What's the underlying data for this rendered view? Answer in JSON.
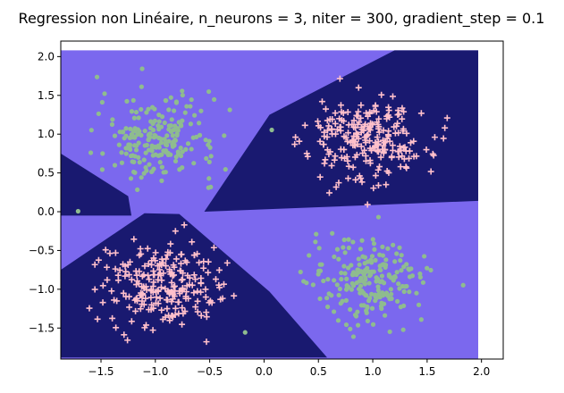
{
  "chart_data": {
    "type": "scatter",
    "title": "Regression non Linéaire, n_neurons = 3, niter = 300, gradient_step = 0.1",
    "xlabel": "",
    "ylabel": "",
    "xlim": [
      -1.87,
      2.2
    ],
    "ylim": [
      -1.9,
      2.2
    ],
    "grid": false,
    "legend": "none",
    "x_ticks": [
      -1.5,
      -1.0,
      -0.5,
      0.0,
      0.5,
      1.0,
      1.5,
      2.0
    ],
    "y_ticks": [
      2.0,
      1.5,
      1.0,
      0.5,
      0.0,
      -0.5,
      -1.0,
      -1.5
    ],
    "x_tick_labels": [
      "−1.5",
      "−1.0",
      "−0.5",
      "0.0",
      "0.5",
      "1.0",
      "1.5",
      "2.0"
    ],
    "y_tick_labels": [
      "2.0",
      "1.5",
      "1.0",
      "0.5",
      "0.0",
      "−0.5",
      "−1.0",
      "−1.5"
    ],
    "background": {
      "description": "decision regions of the classifier on grid x in [-1.87, 1.97], y in [-1.9, 2.08]",
      "colors": {
        "region_a": "#7b68ee",
        "region_b": "#191970"
      }
    },
    "clusters": [
      {
        "class": "green-dot",
        "marker": "point",
        "color": "#8fbc8f",
        "center": [
          -0.98,
          0.95
        ],
        "spread": 0.27,
        "count": 220
      },
      {
        "class": "green-dot",
        "marker": "point",
        "color": "#8fbc8f",
        "center": [
          0.98,
          -0.9
        ],
        "spread": 0.27,
        "count": 220
      },
      {
        "class": "pink-plus",
        "marker": "plus",
        "color": "#ffc0cb",
        "center": [
          0.95,
          0.95
        ],
        "spread": 0.27,
        "count": 230
      },
      {
        "class": "pink-plus",
        "marker": "plus",
        "color": "#ffc0cb",
        "center": [
          -0.95,
          -0.95
        ],
        "spread": 0.27,
        "count": 230
      }
    ]
  }
}
